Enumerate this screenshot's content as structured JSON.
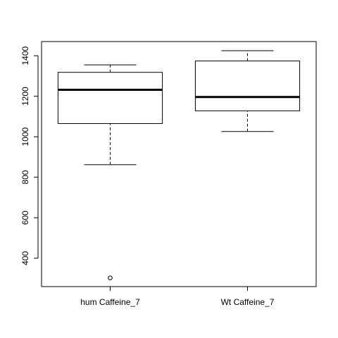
{
  "chart_data": {
    "type": "boxplot",
    "title": "",
    "xlabel": "",
    "ylabel": "",
    "ylim": [
      260,
      1470
    ],
    "y_ticks": [
      400,
      600,
      800,
      1000,
      1200,
      1400
    ],
    "y_tick_labels": [
      "400",
      "600",
      "800",
      "1000",
      "1200",
      "1400"
    ],
    "categories": [
      "hum Caffeine_7",
      "Wt Caffeine_7"
    ],
    "boxes": [
      {
        "category": "hum Caffeine_7",
        "whisker_low": 862,
        "q1": 1065,
        "median": 1232,
        "q3": 1318,
        "whisker_high": 1355,
        "outliers": [
          303
        ]
      },
      {
        "category": "Wt Caffeine_7",
        "whisker_low": 1026,
        "q1": 1128,
        "median": 1196,
        "q3": 1374,
        "whisker_high": 1425,
        "outliers": []
      }
    ]
  }
}
